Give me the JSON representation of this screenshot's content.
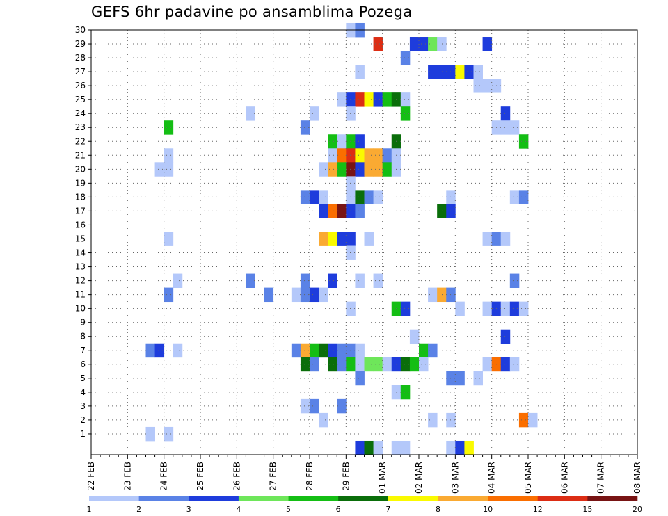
{
  "title": "GEFS 6hr padavine po ansamblima Pozega",
  "chart_data": {
    "type": "heatmap",
    "title": "GEFS 6hr padavine po ansamblima Pozega",
    "xlabel": "",
    "ylabel": "",
    "x_tick_labels": [
      "22 FEB",
      "23 FEB",
      "24 FEB",
      "25 FEB",
      "26 FEB",
      "27 FEB",
      "28 FEB",
      "29 FEB",
      "01 MAR",
      "02 MAR",
      "03 MAR",
      "04 MAR",
      "05 MAR",
      "06 MAR",
      "07 MAR",
      "08 MAR"
    ],
    "x_step": "6hr",
    "y_ticks": [
      1,
      2,
      3,
      4,
      5,
      6,
      7,
      8,
      9,
      10,
      11,
      12,
      13,
      14,
      15,
      16,
      17,
      18,
      19,
      20,
      21,
      22,
      23,
      24,
      25,
      26,
      27,
      28,
      29,
      30
    ],
    "grid": true,
    "legend_placement": "bottom",
    "color_scale": {
      "labels": [
        "1",
        "2",
        "3",
        "4",
        "5",
        "6",
        "7",
        "8",
        "10",
        "12",
        "15",
        "20"
      ],
      "colors": [
        "#b4c8fa",
        "#5a82e6",
        "#1e3cdc",
        "#6ee65a",
        "#14be14",
        "#0a6e0a",
        "#fafa00",
        "#faaa32",
        "#fa6e00",
        "#dc2d14",
        "#781414"
      ]
    },
    "cells": [
      [
        29.0,
        30,
        1
      ],
      [
        29.25,
        30,
        2
      ],
      [
        29.75,
        29,
        10
      ],
      [
        30.75,
        29,
        3
      ],
      [
        31.0,
        29,
        3
      ],
      [
        31.25,
        29,
        4
      ],
      [
        31.5,
        29,
        1
      ],
      [
        32.75,
        29,
        3
      ],
      [
        30.5,
        28,
        2
      ],
      [
        29.25,
        27,
        1
      ],
      [
        31.25,
        27,
        3
      ],
      [
        31.5,
        27,
        3
      ],
      [
        31.75,
        27,
        3
      ],
      [
        32.0,
        27,
        7
      ],
      [
        32.25,
        27,
        3
      ],
      [
        32.5,
        27,
        1
      ],
      [
        32.5,
        26,
        1
      ],
      [
        32.75,
        26,
        1
      ],
      [
        33.0,
        26,
        1
      ],
      [
        28.75,
        25,
        1
      ],
      [
        29.0,
        25,
        3
      ],
      [
        29.25,
        25,
        10
      ],
      [
        29.5,
        25,
        7
      ],
      [
        29.75,
        25,
        3
      ],
      [
        30.0,
        25,
        5
      ],
      [
        30.25,
        25,
        6
      ],
      [
        30.5,
        25,
        1
      ],
      [
        26.25,
        24,
        1
      ],
      [
        28.0,
        24,
        1
      ],
      [
        29.0,
        24,
        1
      ],
      [
        30.5,
        24,
        5
      ],
      [
        33.25,
        24,
        3
      ],
      [
        24.0,
        23,
        5
      ],
      [
        27.75,
        23,
        2
      ],
      [
        33.0,
        23,
        1
      ],
      [
        33.25,
        23,
        1
      ],
      [
        33.5,
        23,
        1
      ],
      [
        28.5,
        22,
        5
      ],
      [
        28.75,
        22,
        1
      ],
      [
        29.0,
        22,
        5
      ],
      [
        29.25,
        22,
        3
      ],
      [
        30.25,
        22,
        6
      ],
      [
        33.75,
        22,
        5
      ],
      [
        24.0,
        21,
        1
      ],
      [
        28.5,
        21,
        1
      ],
      [
        28.75,
        21,
        9
      ],
      [
        29.0,
        21,
        10
      ],
      [
        29.25,
        21,
        7
      ],
      [
        29.5,
        21,
        8
      ],
      [
        29.75,
        21,
        8
      ],
      [
        30.0,
        21,
        2
      ],
      [
        30.25,
        21,
        1
      ],
      [
        23.75,
        20,
        1
      ],
      [
        24.0,
        20,
        1
      ],
      [
        28.25,
        20,
        1
      ],
      [
        28.5,
        20,
        8
      ],
      [
        28.75,
        20,
        5
      ],
      [
        29.0,
        20,
        11
      ],
      [
        29.25,
        20,
        3
      ],
      [
        29.5,
        20,
        8
      ],
      [
        29.75,
        20,
        8
      ],
      [
        30.0,
        20,
        5
      ],
      [
        30.25,
        20,
        1
      ],
      [
        29.0,
        19,
        1
      ],
      [
        27.75,
        18,
        2
      ],
      [
        28.0,
        18,
        3
      ],
      [
        28.25,
        18,
        1
      ],
      [
        29.0,
        18,
        1
      ],
      [
        29.25,
        18,
        6
      ],
      [
        29.5,
        18,
        2
      ],
      [
        29.75,
        18,
        1
      ],
      [
        31.75,
        18,
        1
      ],
      [
        33.5,
        18,
        1
      ],
      [
        33.75,
        18,
        2
      ],
      [
        28.25,
        17,
        3
      ],
      [
        28.5,
        17,
        9
      ],
      [
        28.75,
        17,
        11
      ],
      [
        29.0,
        17,
        3
      ],
      [
        29.25,
        17,
        2
      ],
      [
        31.5,
        17,
        6
      ],
      [
        31.75,
        17,
        3
      ],
      [
        24.0,
        15,
        1
      ],
      [
        28.25,
        15,
        8
      ],
      [
        28.5,
        15,
        7
      ],
      [
        28.75,
        15,
        3
      ],
      [
        29.0,
        15,
        3
      ],
      [
        29.5,
        15,
        1
      ],
      [
        32.75,
        15,
        1
      ],
      [
        33.0,
        15,
        2
      ],
      [
        33.25,
        15,
        1
      ],
      [
        29.0,
        14,
        1
      ],
      [
        24.25,
        12,
        1
      ],
      [
        26.25,
        12,
        2
      ],
      [
        27.75,
        12,
        2
      ],
      [
        28.5,
        12,
        3
      ],
      [
        29.25,
        12,
        1
      ],
      [
        29.75,
        12,
        1
      ],
      [
        33.5,
        12,
        2
      ],
      [
        24.0,
        11,
        2
      ],
      [
        26.75,
        11,
        2
      ],
      [
        27.5,
        11,
        1
      ],
      [
        27.75,
        11,
        2
      ],
      [
        28.0,
        11,
        3
      ],
      [
        28.25,
        11,
        1
      ],
      [
        31.25,
        11,
        1
      ],
      [
        31.5,
        11,
        8
      ],
      [
        31.75,
        11,
        2
      ],
      [
        29.0,
        10,
        1
      ],
      [
        30.25,
        10,
        5
      ],
      [
        30.5,
        10,
        3
      ],
      [
        32.0,
        10,
        1
      ],
      [
        32.75,
        10,
        1
      ],
      [
        33.0,
        10,
        3
      ],
      [
        33.25,
        10,
        1
      ],
      [
        33.5,
        10,
        3
      ],
      [
        33.75,
        10,
        1
      ],
      [
        30.75,
        8,
        1
      ],
      [
        33.25,
        8,
        3
      ],
      [
        23.5,
        7,
        2
      ],
      [
        23.75,
        7,
        3
      ],
      [
        24.25,
        7,
        1
      ],
      [
        27.5,
        7,
        2
      ],
      [
        27.75,
        7,
        8
      ],
      [
        28.0,
        7,
        5
      ],
      [
        28.25,
        7,
        6
      ],
      [
        28.5,
        7,
        3
      ],
      [
        28.75,
        7,
        2
      ],
      [
        29.0,
        7,
        2
      ],
      [
        29.25,
        7,
        1
      ],
      [
        31.0,
        7,
        5
      ],
      [
        31.25,
        7,
        2
      ],
      [
        27.75,
        6,
        6
      ],
      [
        28.0,
        6,
        2
      ],
      [
        28.5,
        6,
        6
      ],
      [
        28.75,
        6,
        2
      ],
      [
        29.0,
        6,
        5
      ],
      [
        29.25,
        6,
        1
      ],
      [
        29.5,
        6,
        4
      ],
      [
        29.75,
        6,
        4
      ],
      [
        30.0,
        6,
        1
      ],
      [
        30.25,
        6,
        3
      ],
      [
        30.5,
        6,
        6
      ],
      [
        30.75,
        6,
        5
      ],
      [
        31.0,
        6,
        1
      ],
      [
        32.75,
        6,
        1
      ],
      [
        33.0,
        6,
        9
      ],
      [
        33.25,
        6,
        3
      ],
      [
        33.5,
        6,
        1
      ],
      [
        29.25,
        5,
        2
      ],
      [
        31.75,
        5,
        2
      ],
      [
        32.0,
        5,
        2
      ],
      [
        32.5,
        5,
        1
      ],
      [
        30.25,
        4,
        1
      ],
      [
        30.5,
        4,
        5
      ],
      [
        27.75,
        3,
        1
      ],
      [
        28.0,
        3,
        2
      ],
      [
        28.75,
        3,
        2
      ],
      [
        28.25,
        2,
        1
      ],
      [
        31.25,
        2,
        1
      ],
      [
        31.75,
        2,
        1
      ],
      [
        33.75,
        2,
        9
      ],
      [
        34.0,
        2,
        1
      ],
      [
        23.5,
        1,
        1
      ],
      [
        24.0,
        1,
        1
      ],
      [
        29.25,
        0,
        3
      ],
      [
        29.5,
        0,
        6
      ],
      [
        29.75,
        0,
        1
      ],
      [
        30.25,
        0,
        1
      ],
      [
        30.5,
        0,
        1
      ],
      [
        31.75,
        0,
        1
      ],
      [
        32.0,
        0,
        3
      ],
      [
        32.25,
        0,
        7
      ]
    ]
  }
}
